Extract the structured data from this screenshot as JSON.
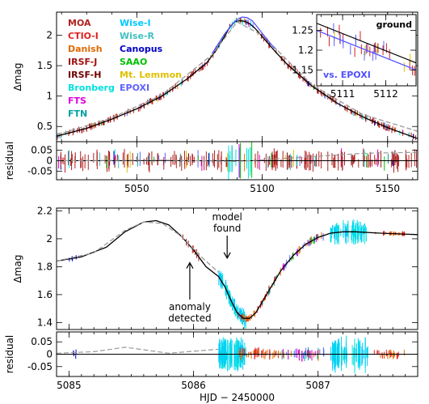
{
  "chart_data": [
    {
      "type": "line",
      "panel": "top-light-curve",
      "xlim": [
        5018,
        5162
      ],
      "ylim": [
        0.25,
        2.38
      ],
      "ylabel": "Δmag",
      "yticks": [
        0.5,
        1,
        1.5,
        2
      ],
      "yticklabels": [
        "0.5",
        "1",
        "1.5",
        "2"
      ],
      "legend": [
        {
          "name": "MOA",
          "color": "#b22222"
        },
        {
          "name": "CTIO-I",
          "color": "#e02020"
        },
        {
          "name": "Danish",
          "color": "#e06a00"
        },
        {
          "name": "IRSF-J",
          "color": "#a01010"
        },
        {
          "name": "IRSF-H",
          "color": "#700000"
        },
        {
          "name": "Bronberg",
          "color": "#00e0e0"
        },
        {
          "name": "FTS",
          "color": "#e000e0"
        },
        {
          "name": "FTN",
          "color": "#00a0a0"
        },
        {
          "name": "Wise-I",
          "color": "#00c8ff"
        },
        {
          "name": "Wise-R",
          "color": "#40c0c0"
        },
        {
          "name": "Canopus",
          "color": "#0000c8"
        },
        {
          "name": "SAAO",
          "color": "#00c000"
        },
        {
          "name": "Mt. Lemmon",
          "color": "#e0c000"
        },
        {
          "name": "EPOXI",
          "color": "#6060ff"
        }
      ],
      "series": [
        {
          "name": "",
          "style": "solid",
          "color": "#000000",
          "x": [
            5018,
            5030,
            5040,
            5050,
            5060,
            5070,
            5078,
            5082,
            5085,
            5087,
            5089,
            5091,
            5093,
            5095,
            5097,
            5100,
            5105,
            5110,
            5120,
            5130,
            5140,
            5150,
            5162
          ],
          "y": [
            0.34,
            0.47,
            0.62,
            0.79,
            1.0,
            1.28,
            1.55,
            1.78,
            1.98,
            2.13,
            2.22,
            2.24,
            2.23,
            2.19,
            2.12,
            1.98,
            1.74,
            1.52,
            1.16,
            0.88,
            0.66,
            0.48,
            0.3
          ]
        },
        {
          "name": "",
          "style": "dashed",
          "color": "#999999",
          "x": [
            5018,
            5040,
            5060,
            5080,
            5090,
            5100,
            5120,
            5140,
            5162
          ],
          "y": [
            0.36,
            0.64,
            1.02,
            1.68,
            2.22,
            2.0,
            1.18,
            0.7,
            0.42
          ]
        },
        {
          "name": "",
          "style": "solid",
          "color": "#5050ff",
          "x": [
            5080,
            5085,
            5088,
            5090,
            5092,
            5094,
            5096,
            5098,
            5101,
            5105
          ],
          "y": [
            1.7,
            2.02,
            2.18,
            2.26,
            2.3,
            2.29,
            2.24,
            2.14,
            1.98,
            1.78
          ]
        }
      ]
    },
    {
      "type": "scatter",
      "panel": "top-residual",
      "xlim": [
        5018,
        5162
      ],
      "ylim": [
        -0.09,
        0.09
      ],
      "ylabel": "residual",
      "yticks": [
        0.05,
        0,
        -0.05
      ],
      "yticklabels": [
        "0.05",
        "0",
        "-0.05"
      ],
      "xticks": [
        5050,
        5100,
        5150
      ],
      "xticklabels": [
        "5050",
        "5100",
        "5150"
      ]
    },
    {
      "type": "line",
      "panel": "inset",
      "xlim": [
        5110.4,
        5112.7
      ],
      "ylim": [
        1.11,
        1.29
      ],
      "yticks": [
        1.15,
        1.2,
        1.25
      ],
      "yticklabels": [
        "1.15",
        "1.2",
        "1.25"
      ],
      "xticks": [
        5111,
        5112
      ],
      "xticklabels": [
        "5111",
        "5112"
      ],
      "labels": {
        "ground": "ground",
        "epoxi": "vs. EPOXI"
      }
    },
    {
      "type": "line",
      "panel": "bottom-light-curve",
      "xlim": [
        5084.9,
        5087.8
      ],
      "ylim": [
        1.35,
        2.22
      ],
      "ylabel": "Δmag",
      "yticks": [
        1.4,
        1.6,
        1.8,
        2,
        2.2
      ],
      "yticklabels": [
        "1.4",
        "1.6",
        "1.8",
        "2",
        "2.2"
      ],
      "annotations": [
        {
          "text": [
            "model",
            "found"
          ],
          "x": 5086.27,
          "y": 1.85
        },
        {
          "text": [
            "anomaly",
            "detected"
          ],
          "x": 5085.97,
          "y": 1.84
        }
      ],
      "series": [
        {
          "name": "",
          "style": "solid",
          "color": "#000000",
          "x": [
            5084.9,
            5085.1,
            5085.3,
            5085.45,
            5085.6,
            5085.7,
            5085.8,
            5085.9,
            5086.0,
            5086.1,
            5086.2,
            5086.25,
            5086.3,
            5086.35,
            5086.4,
            5086.45,
            5086.5,
            5086.6,
            5086.7,
            5086.8,
            5086.9,
            5087.0,
            5087.1,
            5087.2,
            5087.3,
            5087.5,
            5087.8
          ],
          "y": [
            1.84,
            1.87,
            1.94,
            2.05,
            2.12,
            2.13,
            2.1,
            2.02,
            1.92,
            1.8,
            1.73,
            1.66,
            1.56,
            1.47,
            1.43,
            1.43,
            1.47,
            1.62,
            1.77,
            1.88,
            1.96,
            2.01,
            2.04,
            2.05,
            2.05,
            2.04,
            2.03
          ]
        },
        {
          "name": "",
          "style": "dashed",
          "color": "#999999",
          "x": [
            5084.9,
            5085.2,
            5085.45,
            5085.6,
            5085.75,
            5085.9,
            5086.05,
            5086.2
          ],
          "y": [
            1.84,
            1.9,
            2.06,
            2.12,
            2.11,
            2.02,
            1.88,
            1.76
          ]
        }
      ]
    },
    {
      "type": "scatter",
      "panel": "bottom-residual",
      "xlim": [
        5084.9,
        5087.8
      ],
      "ylim": [
        -0.09,
        0.09
      ],
      "ylabel": "residual",
      "xlabel": "HJD − 2450000",
      "yticks": [
        0.05,
        0,
        -0.05
      ],
      "yticklabels": [
        "0.05",
        "0",
        "-0.05"
      ],
      "xticks": [
        5085,
        5086,
        5087
      ],
      "xticklabels": [
        "5085",
        "5086",
        "5087"
      ]
    }
  ]
}
